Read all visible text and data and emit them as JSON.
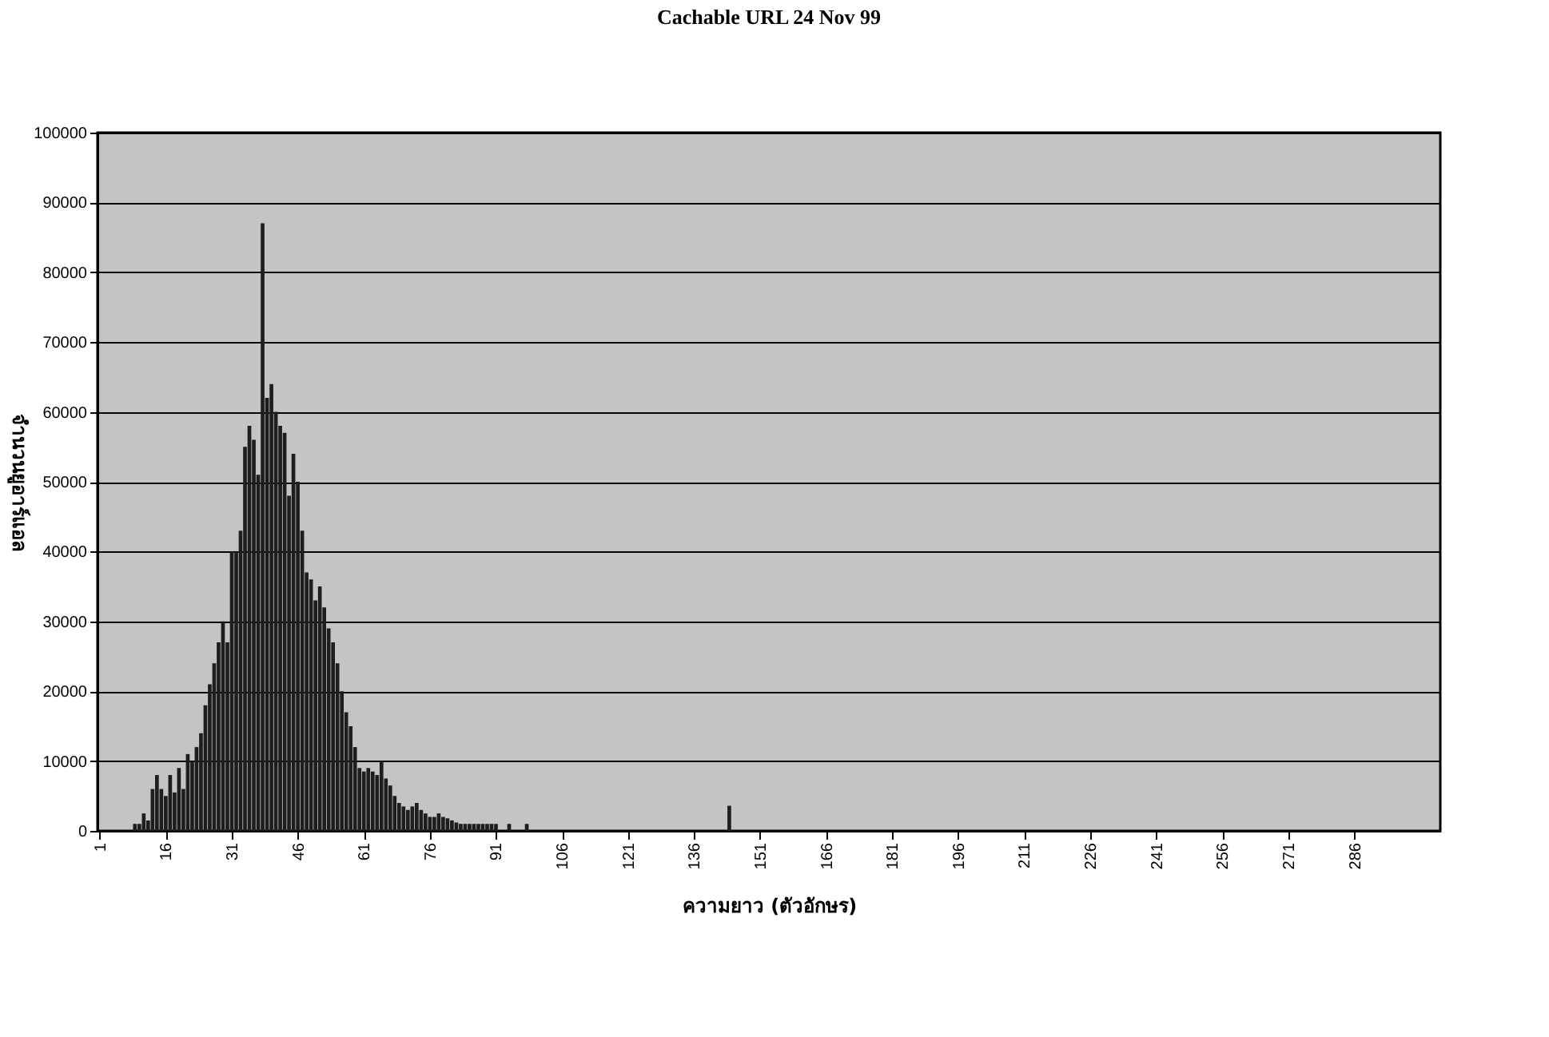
{
  "chart_data": {
    "type": "bar",
    "title": "Cachable URL 24 Nov 99",
    "xlabel": "ความยาว (ตัวอักษร)",
    "ylabel": "จำนวนยูอาร์แอล",
    "x": [
      1,
      2,
      3,
      4,
      5,
      6,
      7,
      8,
      9,
      10,
      11,
      12,
      13,
      14,
      15,
      16,
      17,
      18,
      19,
      20,
      21,
      22,
      23,
      24,
      25,
      26,
      27,
      28,
      29,
      30,
      31,
      32,
      33,
      34,
      35,
      36,
      37,
      38,
      39,
      40,
      41,
      42,
      43,
      44,
      45,
      46,
      47,
      48,
      49,
      50,
      51,
      52,
      53,
      54,
      55,
      56,
      57,
      58,
      59,
      60,
      61,
      62,
      63,
      64,
      65,
      66,
      67,
      68,
      69,
      70,
      71,
      72,
      73,
      74,
      75,
      76,
      77,
      78,
      79,
      80,
      81,
      82,
      83,
      84,
      85,
      86,
      87,
      88,
      89,
      90,
      91,
      92,
      93,
      94,
      95,
      96,
      97,
      98,
      99,
      100,
      101,
      102,
      103,
      104,
      105,
      106,
      107,
      108,
      109,
      110,
      111,
      112,
      113,
      114,
      115,
      116,
      117,
      118,
      119,
      120,
      121,
      122,
      123,
      124,
      125,
      126,
      127,
      128,
      129,
      130,
      131,
      132,
      133,
      134,
      135,
      136,
      137,
      138,
      139,
      140,
      141,
      142,
      143,
      144,
      145,
      146,
      147,
      148,
      149,
      150,
      151,
      152,
      153,
      154,
      155,
      156,
      157,
      158,
      159,
      160
    ],
    "values": [
      0,
      0,
      0,
      0,
      0,
      0,
      0,
      0,
      1000,
      1000,
      2500,
      1500,
      6000,
      8000,
      6000,
      5000,
      8000,
      5500,
      9000,
      6000,
      11000,
      10000,
      12000,
      14000,
      18000,
      21000,
      24000,
      27000,
      30000,
      27000,
      40000,
      40000,
      43000,
      55000,
      58000,
      56000,
      51000,
      87000,
      62000,
      64000,
      60000,
      58000,
      57000,
      48000,
      54000,
      50000,
      43000,
      37000,
      36000,
      33000,
      35000,
      32000,
      29000,
      27000,
      24000,
      20000,
      17000,
      15000,
      12000,
      9000,
      8500,
      9000,
      8500,
      8000,
      10000,
      7500,
      6500,
      5000,
      4000,
      3500,
      3000,
      3500,
      4000,
      3000,
      2500,
      2000,
      2000,
      2500,
      2000,
      1800,
      1500,
      1200,
      1000,
      1000,
      1000,
      1000,
      1000,
      1000,
      1000,
      1000,
      1000,
      0,
      0,
      1000,
      0,
      0,
      0,
      1000,
      0,
      0,
      0,
      0,
      0,
      0,
      0,
      0,
      0,
      0,
      0,
      0,
      0,
      0,
      0,
      0,
      0,
      0,
      0,
      0,
      0,
      0,
      0,
      0,
      0,
      0,
      0,
      0,
      0,
      0,
      0,
      0,
      0,
      0,
      0,
      0,
      0,
      0,
      0,
      0,
      0,
      0,
      0,
      0,
      0,
      3600,
      0,
      0,
      0,
      0,
      0,
      0,
      0,
      0,
      0,
      0,
      0,
      0,
      0,
      0,
      0,
      0
    ],
    "color": "#1e1e1e",
    "xlim": [
      0.5,
      305.5
    ],
    "xticks": [
      1,
      16,
      31,
      46,
      61,
      76,
      91,
      106,
      121,
      136,
      151,
      166,
      181,
      196,
      211,
      226,
      241,
      256,
      271,
      286
    ],
    "ylim": [
      0,
      100000
    ],
    "yticks": [
      0,
      10000,
      20000,
      30000,
      40000,
      50000,
      60000,
      70000,
      80000,
      90000,
      100000
    ],
    "grid": "y"
  }
}
